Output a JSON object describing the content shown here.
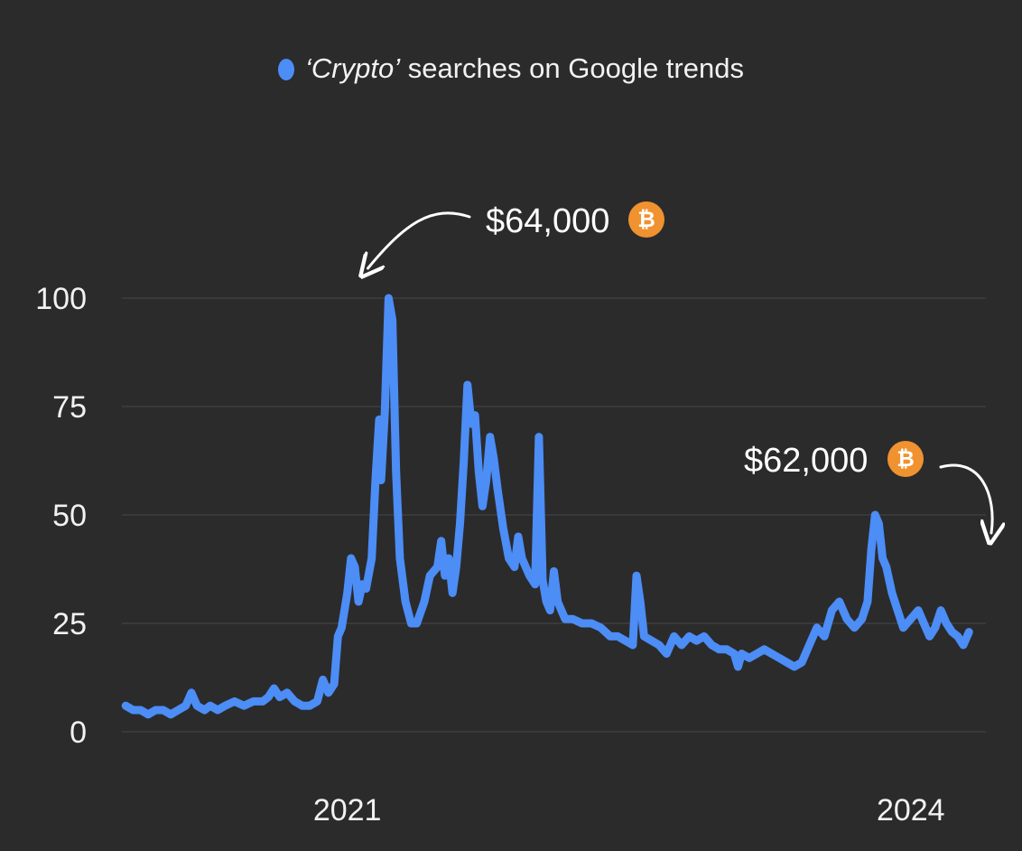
{
  "legend": {
    "term": "‘Crypto’",
    "rest": " searches on Google trends"
  },
  "colors": {
    "background": "#2b2b2c",
    "series": "#4c8df6",
    "grid": "#3e3e40",
    "text": "#f2f2f2",
    "bitcoin": "#f0922f"
  },
  "annotations": [
    {
      "text": "$64,000",
      "icon": "bitcoin-icon",
      "symbol": "₿",
      "points_to_x": 2021.1
    },
    {
      "text": "$62,000",
      "icon": "bitcoin-icon",
      "symbol": "₿",
      "points_to_x": 2024.1
    }
  ],
  "chart_data": {
    "type": "line",
    "title": "",
    "xlabel": "",
    "ylabel": "",
    "ylim": [
      0,
      100
    ],
    "yticks": [
      0,
      25,
      50,
      75,
      100
    ],
    "xticks": [
      {
        "value": 2021,
        "label": "2021"
      },
      {
        "value": 2024,
        "label": "2024"
      }
    ],
    "xlim": [
      2019.8,
      2024.4
    ],
    "grid": true,
    "legend_position": "top-center",
    "series": [
      {
        "name": "‘Crypto’ searches on Google trends",
        "color": "#4c8df6",
        "points": [
          [
            2019.82,
            6
          ],
          [
            2019.86,
            5
          ],
          [
            2019.9,
            5
          ],
          [
            2019.94,
            4
          ],
          [
            2019.98,
            5
          ],
          [
            2020.02,
            5
          ],
          [
            2020.06,
            4
          ],
          [
            2020.1,
            5
          ],
          [
            2020.14,
            6
          ],
          [
            2020.17,
            9
          ],
          [
            2020.2,
            6
          ],
          [
            2020.24,
            5
          ],
          [
            2020.27,
            6
          ],
          [
            2020.31,
            5
          ],
          [
            2020.35,
            6
          ],
          [
            2020.4,
            7
          ],
          [
            2020.45,
            6
          ],
          [
            2020.5,
            7
          ],
          [
            2020.55,
            7
          ],
          [
            2020.58,
            8
          ],
          [
            2020.61,
            10
          ],
          [
            2020.64,
            8
          ],
          [
            2020.68,
            9
          ],
          [
            2020.72,
            7
          ],
          [
            2020.76,
            6
          ],
          [
            2020.8,
            6
          ],
          [
            2020.84,
            7
          ],
          [
            2020.87,
            12
          ],
          [
            2020.9,
            9
          ],
          [
            2020.93,
            11
          ],
          [
            2020.95,
            22
          ],
          [
            2020.97,
            24
          ],
          [
            2021.0,
            32
          ],
          [
            2021.02,
            40
          ],
          [
            2021.04,
            38
          ],
          [
            2021.06,
            30
          ],
          [
            2021.08,
            34
          ],
          [
            2021.1,
            33
          ],
          [
            2021.13,
            40
          ],
          [
            2021.15,
            58
          ],
          [
            2021.17,
            72
          ],
          [
            2021.18,
            58
          ],
          [
            2021.2,
            74
          ],
          [
            2021.22,
            100
          ],
          [
            2021.24,
            95
          ],
          [
            2021.26,
            60
          ],
          [
            2021.28,
            40
          ],
          [
            2021.31,
            30
          ],
          [
            2021.34,
            25
          ],
          [
            2021.37,
            25
          ],
          [
            2021.41,
            30
          ],
          [
            2021.44,
            36
          ],
          [
            2021.48,
            38
          ],
          [
            2021.5,
            44
          ],
          [
            2021.52,
            36
          ],
          [
            2021.54,
            40
          ],
          [
            2021.56,
            32
          ],
          [
            2021.58,
            38
          ],
          [
            2021.6,
            48
          ],
          [
            2021.62,
            62
          ],
          [
            2021.64,
            80
          ],
          [
            2021.66,
            71
          ],
          [
            2021.68,
            73
          ],
          [
            2021.7,
            60
          ],
          [
            2021.72,
            52
          ],
          [
            2021.74,
            58
          ],
          [
            2021.76,
            68
          ],
          [
            2021.78,
            63
          ],
          [
            2021.8,
            56
          ],
          [
            2021.83,
            47
          ],
          [
            2021.86,
            40
          ],
          [
            2021.89,
            38
          ],
          [
            2021.91,
            45
          ],
          [
            2021.93,
            40
          ],
          [
            2021.95,
            38
          ],
          [
            2021.97,
            36
          ],
          [
            2022.0,
            34
          ],
          [
            2022.02,
            68
          ],
          [
            2022.04,
            35
          ],
          [
            2022.06,
            30
          ],
          [
            2022.08,
            28
          ],
          [
            2022.1,
            37
          ],
          [
            2022.12,
            30
          ],
          [
            2022.14,
            28
          ],
          [
            2022.16,
            26
          ],
          [
            2022.2,
            26
          ],
          [
            2022.25,
            25
          ],
          [
            2022.3,
            25
          ],
          [
            2022.35,
            24
          ],
          [
            2022.4,
            22
          ],
          [
            2022.44,
            22
          ],
          [
            2022.48,
            21
          ],
          [
            2022.52,
            20
          ],
          [
            2022.54,
            36
          ],
          [
            2022.56,
            30
          ],
          [
            2022.58,
            22
          ],
          [
            2022.62,
            21
          ],
          [
            2022.66,
            20
          ],
          [
            2022.7,
            18
          ],
          [
            2022.74,
            22
          ],
          [
            2022.78,
            20
          ],
          [
            2022.82,
            22
          ],
          [
            2022.86,
            21
          ],
          [
            2022.9,
            22
          ],
          [
            2022.94,
            20
          ],
          [
            2022.98,
            19
          ],
          [
            2023.02,
            19
          ],
          [
            2023.06,
            18
          ],
          [
            2023.08,
            15
          ],
          [
            2023.1,
            18
          ],
          [
            2023.14,
            17
          ],
          [
            2023.18,
            18
          ],
          [
            2023.22,
            19
          ],
          [
            2023.26,
            18
          ],
          [
            2023.3,
            17
          ],
          [
            2023.34,
            16
          ],
          [
            2023.38,
            15
          ],
          [
            2023.42,
            16
          ],
          [
            2023.46,
            20
          ],
          [
            2023.5,
            24
          ],
          [
            2023.54,
            22
          ],
          [
            2023.58,
            28
          ],
          [
            2023.62,
            30
          ],
          [
            2023.66,
            26
          ],
          [
            2023.7,
            24
          ],
          [
            2023.74,
            26
          ],
          [
            2023.77,
            30
          ],
          [
            2023.79,
            42
          ],
          [
            2023.81,
            50
          ],
          [
            2023.83,
            48
          ],
          [
            2023.85,
            40
          ],
          [
            2023.87,
            38
          ],
          [
            2023.9,
            32
          ],
          [
            2023.93,
            28
          ],
          [
            2023.96,
            24
          ],
          [
            2024.0,
            26
          ],
          [
            2024.04,
            28
          ],
          [
            2024.07,
            25
          ],
          [
            2024.1,
            22
          ],
          [
            2024.13,
            24
          ],
          [
            2024.16,
            28
          ],
          [
            2024.19,
            25
          ],
          [
            2024.22,
            23
          ],
          [
            2024.25,
            22
          ],
          [
            2024.28,
            20
          ],
          [
            2024.31,
            23
          ]
        ]
      }
    ]
  }
}
